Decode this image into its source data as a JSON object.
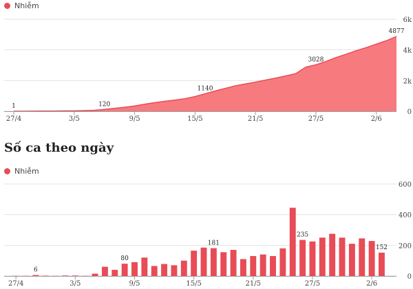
{
  "colors": {
    "series": "#e84c56",
    "area_fill": "#f77a7f",
    "grid": "#e2e2e2",
    "axis": "#999999"
  },
  "section_title": "Số ca theo ngày",
  "chart_data": [
    {
      "type": "area",
      "legend": "Nhiễm",
      "y_ticks": [
        "0",
        "2k",
        "4k",
        "6k"
      ],
      "ylim": [
        0,
        6000
      ],
      "x_tick_labels": [
        "27/4",
        "3/5",
        "9/5",
        "15/5",
        "21/5",
        "27/5",
        "2/6"
      ],
      "x_tick_days": [
        0,
        6,
        12,
        18,
        24,
        30,
        36
      ],
      "x_days": [
        0,
        1,
        2,
        3,
        4,
        5,
        6,
        7,
        8,
        9,
        10,
        11,
        12,
        13,
        14,
        15,
        16,
        17,
        18,
        19,
        20,
        21,
        22,
        23,
        24,
        25,
        26,
        27,
        28,
        29,
        30,
        31,
        32,
        33,
        34,
        35,
        36,
        37,
        38
      ],
      "values": [
        1,
        2,
        8,
        10,
        12,
        20,
        24,
        40,
        60,
        120,
        190,
        260,
        340,
        460,
        560,
        650,
        730,
        820,
        960,
        1140,
        1320,
        1490,
        1660,
        1780,
        1900,
        2030,
        2160,
        2300,
        2450,
        2880,
        3028,
        3250,
        3500,
        3720,
        3950,
        4150,
        4380,
        4600,
        4877
      ],
      "annotations": [
        {
          "day": 0,
          "value": 1,
          "label": "1"
        },
        {
          "day": 9,
          "value": 120,
          "label": "120"
        },
        {
          "day": 19,
          "value": 1140,
          "label": "1140"
        },
        {
          "day": 30,
          "value": 3028,
          "label": "3028"
        },
        {
          "day": 38,
          "value": 4877,
          "label": "4877"
        }
      ]
    },
    {
      "type": "bar",
      "legend": "Nhiễm",
      "y_ticks": [
        "0",
        "200",
        "400",
        "600"
      ],
      "ylim": [
        0,
        600
      ],
      "x_tick_labels": [
        "27/4",
        "3/5",
        "9/5",
        "15/5",
        "21/5",
        "27/5",
        "2/6"
      ],
      "x_tick_days": [
        0,
        6,
        12,
        18,
        24,
        30,
        36
      ],
      "x_days": [
        0,
        1,
        2,
        3,
        4,
        5,
        6,
        7,
        8,
        9,
        10,
        11,
        12,
        13,
        14,
        15,
        16,
        17,
        18,
        19,
        20,
        21,
        22,
        23,
        24,
        25,
        26,
        27,
        28,
        29,
        30,
        31,
        32,
        33,
        34,
        35,
        36,
        37,
        38
      ],
      "values": [
        1,
        1,
        6,
        2,
        1,
        3,
        3,
        1,
        15,
        60,
        40,
        80,
        90,
        120,
        65,
        78,
        70,
        100,
        165,
        185,
        181,
        155,
        170,
        110,
        130,
        140,
        130,
        180,
        445,
        235,
        225,
        250,
        275,
        250,
        210,
        245,
        228,
        152,
        0
      ],
      "annotations": [
        {
          "day": 2,
          "value": 6,
          "label": "6"
        },
        {
          "day": 11,
          "value": 80,
          "label": "80"
        },
        {
          "day": 20,
          "value": 181,
          "label": "181"
        },
        {
          "day": 29,
          "value": 235,
          "label": "235"
        },
        {
          "day": 37,
          "value": 152,
          "label": "152"
        }
      ]
    }
  ]
}
